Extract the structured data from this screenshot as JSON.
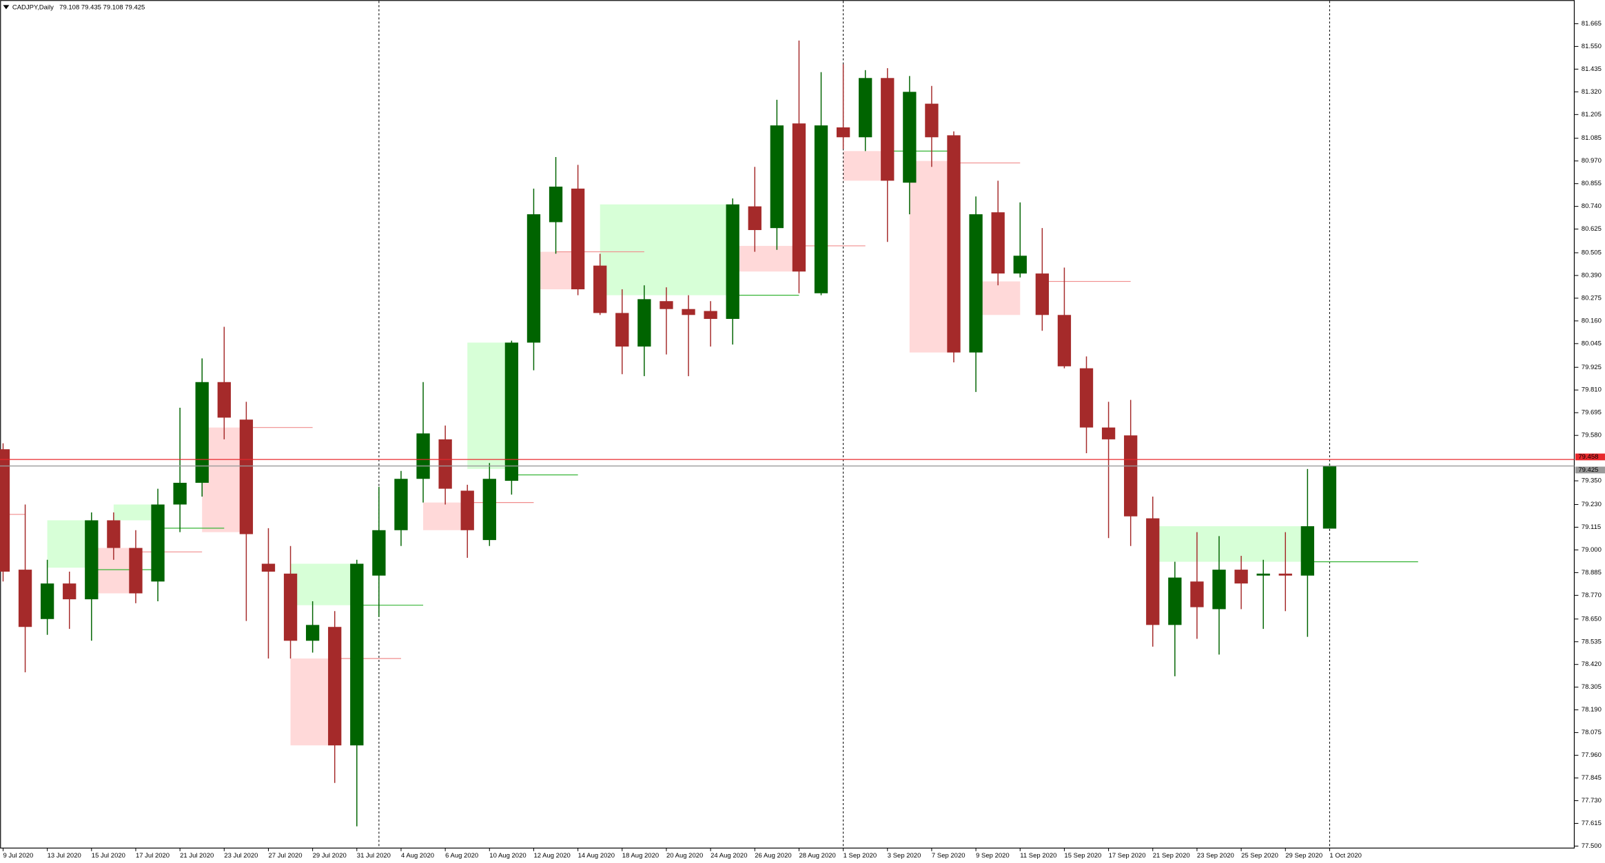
{
  "chart_data": {
    "type": "candlestick",
    "title": "CADJPY,Daily",
    "header_values": "79.108 79.435 79.108 79.425",
    "categories": [
      "9 Jul 2020",
      null,
      "13 Jul 2020",
      null,
      "15 Jul 2020",
      null,
      "17 Jul 2020",
      null,
      "21 Jul 2020",
      null,
      "23 Jul 2020",
      null,
      "27 Jul 2020",
      null,
      "29 Jul 2020",
      null,
      "31 Jul 2020",
      null,
      "4 Aug 2020",
      null,
      "6 Aug 2020",
      null,
      "10 Aug 2020",
      null,
      "12 Aug 2020",
      null,
      "14 Aug 2020",
      null,
      "18 Aug 2020",
      null,
      "20 Aug 2020",
      null,
      "24 Aug 2020",
      null,
      "26 Aug 2020",
      null,
      "28 Aug 2020",
      null,
      "1 Sep 2020",
      null,
      "3 Sep 2020",
      null,
      "7 Sep 2020",
      null,
      "9 Sep 2020",
      null,
      "11 Sep 2020",
      null,
      "15 Sep 2020",
      null,
      "17 Sep 2020",
      null,
      "21 Sep 2020",
      null,
      "23 Sep 2020",
      null,
      "25 Sep 2020",
      null,
      "29 Sep 2020",
      null,
      "1 Oct 2020"
    ],
    "open": [
      79.51,
      78.9,
      78.65,
      78.83,
      78.75,
      79.15,
      79.01,
      78.84,
      79.23,
      79.34,
      79.85,
      79.66,
      78.93,
      78.88,
      78.54,
      78.61,
      78.01,
      78.87,
      79.1,
      79.36,
      79.56,
      79.3,
      79.05,
      79.35,
      80.05,
      80.66,
      80.83,
      80.44,
      80.2,
      80.03,
      80.26,
      80.22,
      80.21,
      80.17,
      80.74,
      80.63,
      81.16,
      80.3,
      81.14,
      81.09,
      81.39,
      80.86,
      81.26,
      81.1,
      80.0,
      80.71,
      80.4,
      80.4,
      80.19,
      79.92,
      79.62,
      79.58,
      79.16,
      78.62,
      78.84,
      78.7,
      78.9,
      78.87,
      78.88,
      78.87,
      79.108
    ],
    "high": [
      79.54,
      79.23,
      78.95,
      78.89,
      79.19,
      79.19,
      79.1,
      79.31,
      79.72,
      79.97,
      80.13,
      79.75,
      79.11,
      79.02,
      78.74,
      78.69,
      78.95,
      79.32,
      79.4,
      79.85,
      79.63,
      79.33,
      79.44,
      80.06,
      80.83,
      80.99,
      80.95,
      80.5,
      80.32,
      80.34,
      80.33,
      80.29,
      80.26,
      80.78,
      80.94,
      81.28,
      81.58,
      81.42,
      81.46,
      81.43,
      81.44,
      81.4,
      81.35,
      81.12,
      80.79,
      80.87,
      80.76,
      80.63,
      80.43,
      79.98,
      79.75,
      79.76,
      79.27,
      78.94,
      79.09,
      79.07,
      78.97,
      78.95,
      79.09,
      79.41,
      79.435
    ],
    "low": [
      78.84,
      78.38,
      78.57,
      78.6,
      78.54,
      78.95,
      78.73,
      78.74,
      79.09,
      79.27,
      79.56,
      78.64,
      78.45,
      78.45,
      78.48,
      77.82,
      77.6,
      78.66,
      79.02,
      79.24,
      79.23,
      78.96,
      79.02,
      79.28,
      79.91,
      80.5,
      80.29,
      80.19,
      79.89,
      79.88,
      79.99,
      79.88,
      80.03,
      80.04,
      80.51,
      80.52,
      80.3,
      80.29,
      81.03,
      81.02,
      80.56,
      80.7,
      80.94,
      79.95,
      79.8,
      80.34,
      80.38,
      80.11,
      79.92,
      79.49,
      79.06,
      79.02,
      78.51,
      78.36,
      78.55,
      78.47,
      78.7,
      78.6,
      78.69,
      78.56,
      79.108
    ],
    "close": [
      78.89,
      78.61,
      78.83,
      78.75,
      79.15,
      79.01,
      78.78,
      79.23,
      79.34,
      79.85,
      79.67,
      79.08,
      78.89,
      78.54,
      78.62,
      78.01,
      78.93,
      79.1,
      79.36,
      79.59,
      79.31,
      79.1,
      79.36,
      80.05,
      80.7,
      80.84,
      80.32,
      80.2,
      80.03,
      80.27,
      80.22,
      80.19,
      80.17,
      80.75,
      80.62,
      81.15,
      80.41,
      81.15,
      81.09,
      81.39,
      80.87,
      81.32,
      81.09,
      80.0,
      80.7,
      80.4,
      80.49,
      80.19,
      79.93,
      79.62,
      79.56,
      79.17,
      78.62,
      78.86,
      78.71,
      78.9,
      78.83,
      78.88,
      78.87,
      79.12,
      79.425
    ],
    "up_color": "#006400",
    "down_color": "#a52a2a",
    "ylim": [
      77.49,
      81.78
    ],
    "yticks": [
      {
        "value": 77.5,
        "label": "77.500"
      },
      77.615,
      {
        "value": 77.73,
        "label": "77.730"
      },
      77.845,
      {
        "value": 77.96,
        "label": "77.960"
      },
      78.075,
      {
        "value": 78.19,
        "label": "78.190"
      },
      78.305,
      {
        "value": 78.42,
        "label": "78.420"
      },
      78.535,
      {
        "value": 78.65,
        "label": "78.650"
      },
      {
        "value": 78.77,
        "label": "78.770"
      },
      78.885,
      {
        "value": 79,
        "label": "79.000"
      },
      79.115,
      {
        "value": 79.23,
        "label": "79.230"
      },
      {
        "value": 79.35,
        "label": "79.350"
      },
      {
        "value": 79.58,
        "label": "79.580"
      },
      79.695,
      {
        "value": 79.81,
        "label": "79.810"
      },
      79.925,
      80.045,
      {
        "value": 80.16,
        "label": "80.160"
      },
      80.275,
      {
        "value": 80.39,
        "label": "80.390"
      },
      80.505,
      80.625,
      {
        "value": 80.74,
        "label": "80.740"
      },
      80.855,
      {
        "value": 80.97,
        "label": "80.970"
      },
      81.085,
      81.205,
      {
        "value": 81.32,
        "label": "81.320"
      },
      81.435,
      {
        "value": 81.55,
        "label": "81.550"
      },
      81.665
    ],
    "ask": 79.458,
    "ask_color": "#e8282c",
    "bid": 79.425,
    "bid_color": "#9a9a9a",
    "period_separators": [
      17,
      38,
      60
    ],
    "zones": [
      {
        "from": 2,
        "to": 4,
        "top": 79.15,
        "bottom": 78.91,
        "color": "#d7ffd7"
      },
      {
        "from": 5,
        "to": 7,
        "top": 79.23,
        "bottom": 79.15,
        "color": "#d7ffd7"
      },
      {
        "from": 4,
        "to": 6,
        "top": 79.01,
        "bottom": 78.78,
        "color": "#ffd9d9"
      },
      {
        "from": 9,
        "to": 11,
        "top": 79.62,
        "bottom": 79.09,
        "color": "#ffd9d9"
      },
      {
        "from": 13,
        "to": 16,
        "top": 78.93,
        "bottom": 78.72,
        "color": "#d7ffd7"
      },
      {
        "from": 13,
        "to": 15,
        "top": 78.45,
        "bottom": 78.01,
        "color": "#ffd9d9"
      },
      {
        "from": 19,
        "to": 21,
        "top": 79.24,
        "bottom": 79.1,
        "color": "#ffd9d9"
      },
      {
        "from": 21,
        "to": 23,
        "top": 80.05,
        "bottom": 79.41,
        "color": "#d7ffd7"
      },
      {
        "from": 24,
        "to": 26,
        "top": 80.51,
        "bottom": 80.32,
        "color": "#ffd9d9"
      },
      {
        "from": 27,
        "to": 33,
        "top": 80.75,
        "bottom": 80.29,
        "color": "#d7ffd7"
      },
      {
        "from": 33,
        "to": 36,
        "top": 80.54,
        "bottom": 80.41,
        "color": "#ffd9d9"
      },
      {
        "from": 38,
        "to": 40,
        "top": 81.02,
        "bottom": 80.87,
        "color": "#ffd9d9"
      },
      {
        "from": 41,
        "to": 43,
        "top": 80.97,
        "bottom": 80.0,
        "color": "#ffd9d9"
      },
      {
        "from": 44,
        "to": 46,
        "top": 80.36,
        "bottom": 80.19,
        "color": "#ffd9d9"
      },
      {
        "from": 52,
        "to": 59,
        "top": 79.12,
        "bottom": 78.94,
        "color": "#d7ffd7"
      }
    ],
    "levels": [
      {
        "from": 0,
        "to": 1,
        "value": 79.18,
        "color": "#f08c8c"
      },
      {
        "from": 4,
        "to": 7,
        "value": 78.9,
        "color": "#34b434"
      },
      {
        "from": 6,
        "to": 9,
        "value": 78.99,
        "color": "#f08c8c"
      },
      {
        "from": 7,
        "to": 10,
        "value": 79.11,
        "color": "#34b434"
      },
      {
        "from": 11,
        "to": 14,
        "value": 79.62,
        "color": "#f08c8c"
      },
      {
        "from": 16,
        "to": 19,
        "value": 78.72,
        "color": "#34b434"
      },
      {
        "from": 15,
        "to": 18,
        "value": 78.45,
        "color": "#f08c8c"
      },
      {
        "from": 21,
        "to": 24,
        "value": 79.24,
        "color": "#f08c8c"
      },
      {
        "from": 23,
        "to": 26,
        "value": 79.38,
        "color": "#34b434"
      },
      {
        "from": 25,
        "to": 29,
        "value": 80.51,
        "color": "#f08c8c"
      },
      {
        "from": 33,
        "to": 36,
        "value": 80.29,
        "color": "#34b434"
      },
      {
        "from": 36,
        "to": 39,
        "value": 80.54,
        "color": "#f08c8c"
      },
      {
        "from": 40,
        "to": 43,
        "value": 81.02,
        "color": "#34b434"
      },
      {
        "from": 43,
        "to": 46,
        "value": 80.96,
        "color": "#f08c8c"
      },
      {
        "from": 47,
        "to": 51,
        "value": 80.36,
        "color": "#f08c8c"
      },
      {
        "from": 59,
        "to": 64,
        "value": 78.94,
        "color": "#34b434"
      }
    ]
  }
}
